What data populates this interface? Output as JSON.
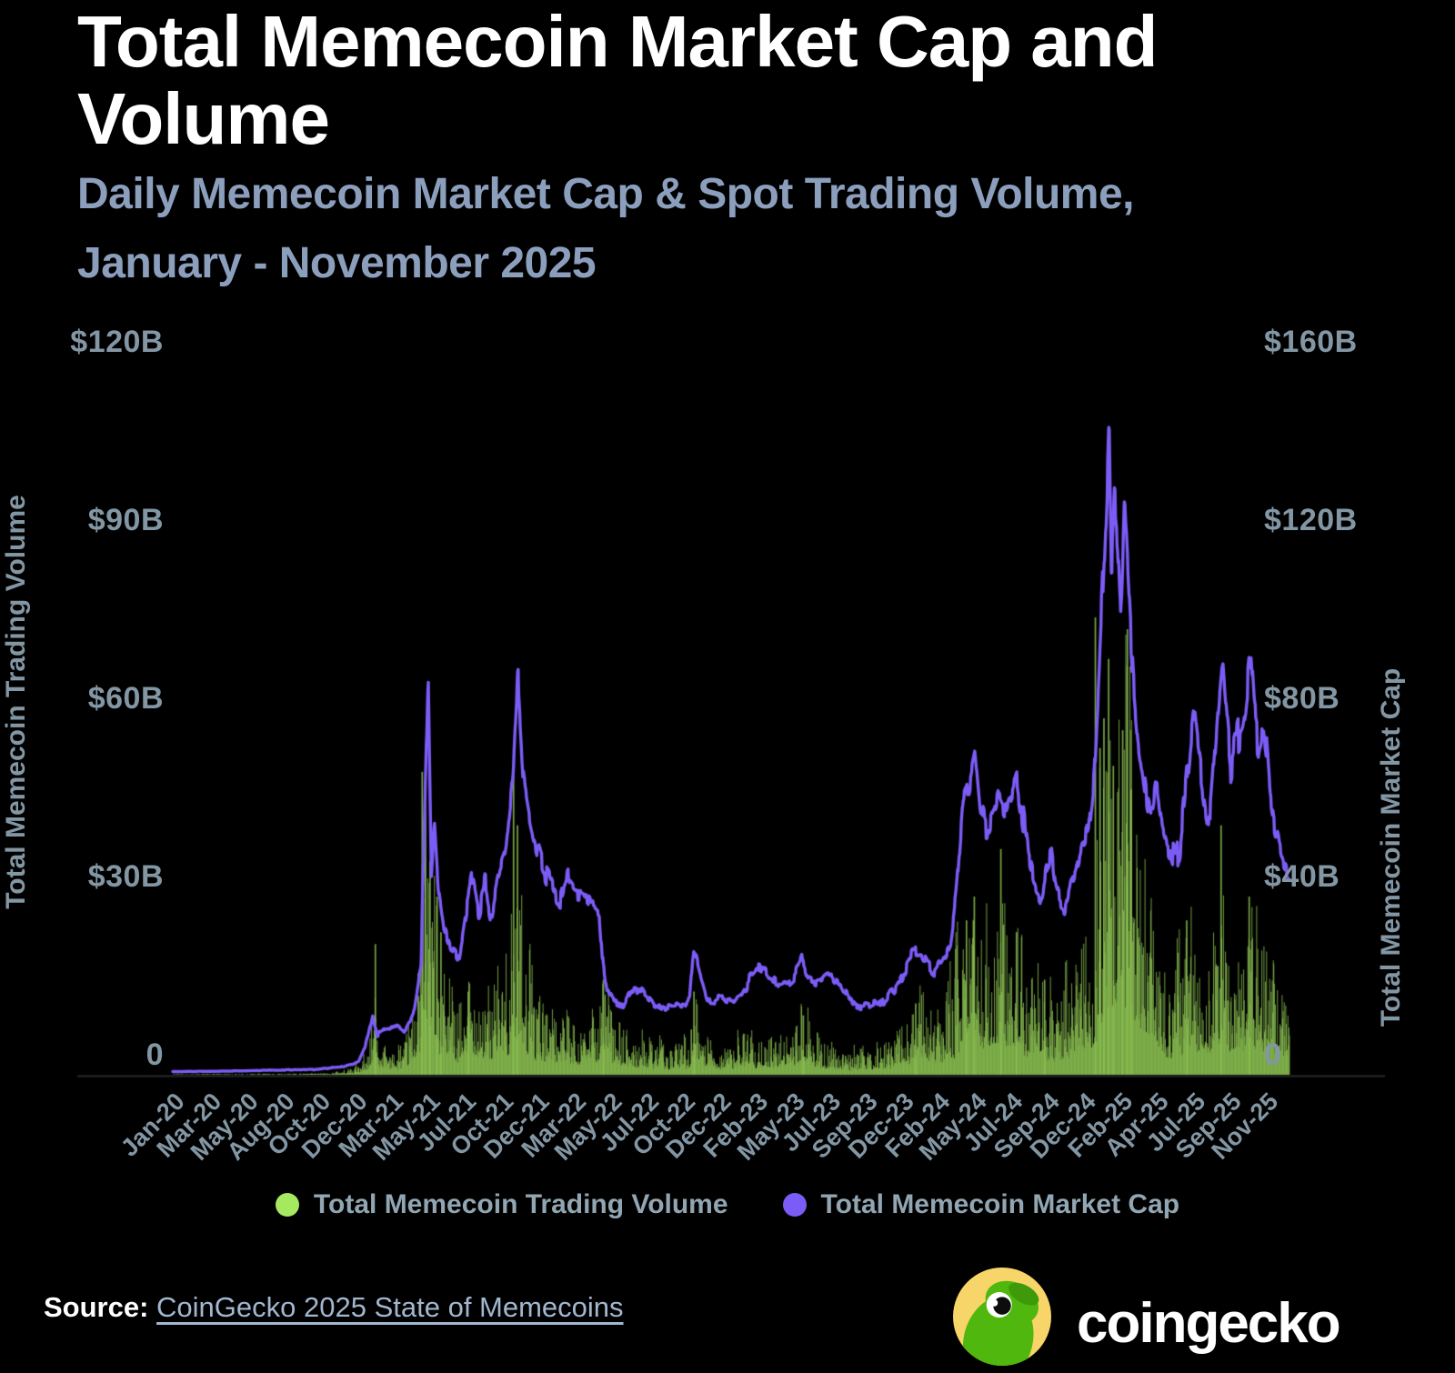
{
  "header": {
    "title": "Total Memecoin Market Cap and Volume",
    "subtitle_line1": "Daily Memecoin Market Cap & Spot Trading Volume,",
    "subtitle_line2": "January - November 2025"
  },
  "chart_data": {
    "type": "bar",
    "note": "dual-axis daily chart: green volume bars on left axis, purple market-cap line on right axis",
    "x_unit": "months since Jan-2020",
    "x_range": [
      0,
      71.5
    ],
    "grid": false,
    "legend_position": "bottom",
    "x_ticks": [
      "Jan-20",
      "Mar-20",
      "May-20",
      "Aug-20",
      "Oct-20",
      "Dec-20",
      "Mar-21",
      "May-21",
      "Jul-21",
      "Oct-21",
      "Dec-21",
      "Mar-22",
      "May-22",
      "Jul-22",
      "Oct-22",
      "Dec-22",
      "Feb-23",
      "May-23",
      "Jul-23",
      "Sep-23",
      "Dec-23",
      "Feb-24",
      "May-24",
      "Jul-24",
      "Sep-24",
      "Dec-24",
      "Feb-25",
      "Apr-25",
      "Jul-25",
      "Sep-25",
      "Nov-25"
    ],
    "left_axis": {
      "title": "Total Memecoin Trading Volume",
      "max": 120,
      "ticks": [
        {
          "label": "$120B",
          "value": 120
        },
        {
          "label": "$90B",
          "value": 90
        },
        {
          "label": "$60B",
          "value": 60
        },
        {
          "label": "$30B",
          "value": 30
        },
        {
          "label": "0",
          "value": 0
        }
      ]
    },
    "right_axis": {
      "title": "Total Memecoin Market Cap",
      "max": 160,
      "ticks": [
        {
          "label": "$160B",
          "value": 160
        },
        {
          "label": "$120B",
          "value": 120
        },
        {
          "label": "$80B",
          "value": 80
        },
        {
          "label": "$40B",
          "value": 40
        },
        {
          "label": "0",
          "value": 0
        }
      ]
    },
    "series": [
      {
        "name": "Total Memecoin Trading Volume",
        "render": "bar",
        "axis": "left",
        "unit": "USD billions per day",
        "color": "#8CC152",
        "legend_color": "#A6E860",
        "anchors": [
          [
            0,
            0.05
          ],
          [
            6,
            0.07
          ],
          [
            10,
            0.12
          ],
          [
            11.5,
            0.5
          ],
          [
            12.4,
            1.5
          ],
          [
            12.9,
            6
          ],
          [
            13.3,
            2.5
          ],
          [
            14,
            2
          ],
          [
            15,
            2.5
          ],
          [
            15.8,
            8
          ],
          [
            16.2,
            20
          ],
          [
            16.5,
            15
          ],
          [
            17,
            11
          ],
          [
            17.5,
            7
          ],
          [
            18.2,
            3.5
          ],
          [
            18.8,
            6
          ],
          [
            19.3,
            8
          ],
          [
            20,
            5
          ],
          [
            20.7,
            7
          ],
          [
            21.4,
            9
          ],
          [
            21.9,
            16
          ],
          [
            22.3,
            13
          ],
          [
            22.8,
            9
          ],
          [
            23.3,
            7
          ],
          [
            24,
            5.5
          ],
          [
            25,
            4.5
          ],
          [
            26,
            4
          ],
          [
            27,
            4.5
          ],
          [
            27.6,
            8
          ],
          [
            28.2,
            3.5
          ],
          [
            29,
            3
          ],
          [
            30,
            2.8
          ],
          [
            31,
            2.2
          ],
          [
            32,
            2.2
          ],
          [
            33,
            3
          ],
          [
            33.35,
            7
          ],
          [
            34,
            3.5
          ],
          [
            35,
            2.2
          ],
          [
            36,
            2.5
          ],
          [
            37,
            3.5
          ],
          [
            38,
            3
          ],
          [
            39,
            2.6
          ],
          [
            40,
            4
          ],
          [
            40.4,
            5
          ],
          [
            41,
            3
          ],
          [
            42,
            2.6
          ],
          [
            43,
            2.2
          ],
          [
            44,
            1.8
          ],
          [
            45,
            2.2
          ],
          [
            46,
            2.8
          ],
          [
            47,
            4.5
          ],
          [
            47.6,
            6
          ],
          [
            48.4,
            4.5
          ],
          [
            49.3,
            5.5
          ],
          [
            50.2,
            9
          ],
          [
            50.7,
            14
          ],
          [
            51.2,
            16
          ],
          [
            51.8,
            12
          ],
          [
            52.5,
            11
          ],
          [
            53.3,
            12
          ],
          [
            54,
            11
          ],
          [
            54.6,
            8
          ],
          [
            55.3,
            7
          ],
          [
            56,
            6
          ],
          [
            56.7,
            6
          ],
          [
            57.4,
            7
          ],
          [
            58,
            9
          ],
          [
            58.6,
            11
          ],
          [
            59.1,
            16
          ],
          [
            59.6,
            26
          ],
          [
            59.95,
            38
          ],
          [
            60.3,
            24
          ],
          [
            60.7,
            28
          ],
          [
            61.05,
            32
          ],
          [
            61.4,
            20
          ],
          [
            61.8,
            16
          ],
          [
            62.3,
            13
          ],
          [
            62.8,
            11
          ],
          [
            63.4,
            9
          ],
          [
            64,
            8
          ],
          [
            64.6,
            10
          ],
          [
            65.2,
            13
          ],
          [
            65.6,
            11
          ],
          [
            66.2,
            9
          ],
          [
            66.8,
            11
          ],
          [
            67.2,
            14
          ],
          [
            67.7,
            10
          ],
          [
            68.2,
            11
          ],
          [
            68.8,
            13
          ],
          [
            69.3,
            12
          ],
          [
            69.8,
            10
          ],
          [
            70.3,
            8
          ],
          [
            70.8,
            7
          ],
          [
            71.5,
            6
          ]
        ],
        "spikes": [
          [
            12.95,
            22
          ],
          [
            15.95,
            51
          ],
          [
            16.15,
            44
          ],
          [
            16.45,
            36
          ],
          [
            16.9,
            30
          ],
          [
            17.15,
            24
          ],
          [
            18.9,
            14
          ],
          [
            21.8,
            52
          ],
          [
            22.05,
            42
          ],
          [
            27.55,
            16
          ],
          [
            33.35,
            14
          ],
          [
            40.35,
            10
          ],
          [
            47.55,
            12
          ],
          [
            50.8,
            26
          ],
          [
            51.3,
            30
          ],
          [
            53,
            38
          ],
          [
            54,
            24
          ],
          [
            55.8,
            16
          ],
          [
            59.05,
            77
          ],
          [
            59.35,
            55
          ],
          [
            59.6,
            60
          ],
          [
            59.9,
            70
          ],
          [
            60.2,
            52
          ],
          [
            60.8,
            58
          ],
          [
            61.1,
            75
          ],
          [
            61.35,
            48
          ],
          [
            64.9,
            26
          ],
          [
            67.1,
            42
          ],
          [
            68.9,
            30
          ]
        ]
      },
      {
        "name": "Total Memecoin Market Cap",
        "render": "line",
        "axis": "right",
        "unit": "USD billions",
        "color": "#7C5CF6",
        "legend_color": "#7C5CF6",
        "anchors": [
          [
            0,
            0.7
          ],
          [
            3,
            0.8
          ],
          [
            6,
            1
          ],
          [
            9,
            1.2
          ],
          [
            11,
            1.8
          ],
          [
            11.9,
            3
          ],
          [
            12.3,
            6
          ],
          [
            12.8,
            13
          ],
          [
            13.1,
            9
          ],
          [
            13.7,
            10
          ],
          [
            14.3,
            11
          ],
          [
            14.9,
            10
          ],
          [
            15.4,
            13
          ],
          [
            15.9,
            24
          ],
          [
            16.15,
            60
          ],
          [
            16.35,
            88
          ],
          [
            16.55,
            44
          ],
          [
            16.75,
            57
          ],
          [
            17,
            42
          ],
          [
            17.35,
            33
          ],
          [
            17.8,
            29
          ],
          [
            18.3,
            26
          ],
          [
            18.8,
            37
          ],
          [
            19.2,
            44
          ],
          [
            19.6,
            37
          ],
          [
            20,
            43
          ],
          [
            20.4,
            36
          ],
          [
            20.8,
            43
          ],
          [
            21.3,
            48
          ],
          [
            21.8,
            66
          ],
          [
            22.1,
            88
          ],
          [
            22.45,
            66
          ],
          [
            22.9,
            57
          ],
          [
            23.3,
            51
          ],
          [
            23.8,
            46
          ],
          [
            24.3,
            42
          ],
          [
            24.8,
            38
          ],
          [
            25.3,
            44
          ],
          [
            25.8,
            41
          ],
          [
            26.3,
            41
          ],
          [
            26.8,
            39
          ],
          [
            27.3,
            38
          ],
          [
            27.55,
            24
          ],
          [
            27.8,
            18
          ],
          [
            28.3,
            16
          ],
          [
            28.8,
            15
          ],
          [
            29.3,
            18
          ],
          [
            29.8,
            19
          ],
          [
            30.3,
            18
          ],
          [
            30.8,
            16
          ],
          [
            31.3,
            15
          ],
          [
            31.8,
            15.5
          ],
          [
            32.3,
            16
          ],
          [
            32.8,
            15.5
          ],
          [
            33.1,
            17
          ],
          [
            33.35,
            28
          ],
          [
            33.65,
            24
          ],
          [
            33.9,
            21
          ],
          [
            34.2,
            17
          ],
          [
            34.7,
            16.5
          ],
          [
            35.3,
            17
          ],
          [
            35.9,
            16.5
          ],
          [
            36.4,
            18
          ],
          [
            36.9,
            21
          ],
          [
            37.4,
            24
          ],
          [
            37.9,
            23
          ],
          [
            38.4,
            21
          ],
          [
            38.9,
            20
          ],
          [
            39.4,
            21
          ],
          [
            39.9,
            23
          ],
          [
            40.3,
            26
          ],
          [
            40.7,
            22
          ],
          [
            41.2,
            21
          ],
          [
            41.7,
            22
          ],
          [
            42.2,
            22
          ],
          [
            42.7,
            20
          ],
          [
            43.2,
            18
          ],
          [
            43.7,
            16
          ],
          [
            44.2,
            15.5
          ],
          [
            44.7,
            16
          ],
          [
            45.2,
            16
          ],
          [
            45.7,
            17
          ],
          [
            46.2,
            19
          ],
          [
            46.7,
            22
          ],
          [
            47.2,
            26
          ],
          [
            47.6,
            28
          ],
          [
            48,
            27
          ],
          [
            48.4,
            24
          ],
          [
            48.8,
            23
          ],
          [
            49.3,
            26
          ],
          [
            49.8,
            30
          ],
          [
            50.2,
            42
          ],
          [
            50.6,
            62
          ],
          [
            51,
            66
          ],
          [
            51.35,
            72
          ],
          [
            51.7,
            58
          ],
          [
            52.1,
            54
          ],
          [
            52.5,
            58
          ],
          [
            52.9,
            63
          ],
          [
            53.3,
            60
          ],
          [
            53.7,
            64
          ],
          [
            54.05,
            67
          ],
          [
            54.4,
            58
          ],
          [
            54.8,
            48
          ],
          [
            55.2,
            43
          ],
          [
            55.6,
            40
          ],
          [
            55.9,
            46
          ],
          [
            56.2,
            50
          ],
          [
            56.5,
            41
          ],
          [
            56.8,
            38
          ],
          [
            57.1,
            37
          ],
          [
            57.5,
            43
          ],
          [
            57.9,
            47
          ],
          [
            58.3,
            52
          ],
          [
            58.7,
            56
          ],
          [
            59,
            67
          ],
          [
            59.3,
            88
          ],
          [
            59.55,
            108
          ],
          [
            59.8,
            132
          ],
          [
            59.95,
            148
          ],
          [
            60.1,
            112
          ],
          [
            60.3,
            125
          ],
          [
            60.5,
            118
          ],
          [
            60.7,
            100
          ],
          [
            60.95,
            126
          ],
          [
            61.2,
            108
          ],
          [
            61.5,
            88
          ],
          [
            61.8,
            76
          ],
          [
            62.1,
            68
          ],
          [
            62.4,
            60
          ],
          [
            62.7,
            57
          ],
          [
            63,
            63
          ],
          [
            63.3,
            56
          ],
          [
            63.6,
            52
          ],
          [
            63.9,
            50
          ],
          [
            64.2,
            47
          ],
          [
            64.5,
            52
          ],
          [
            64.8,
            62
          ],
          [
            65.1,
            74
          ],
          [
            65.35,
            83
          ],
          [
            65.6,
            75
          ],
          [
            65.9,
            68
          ],
          [
            66.2,
            60
          ],
          [
            66.45,
            58
          ],
          [
            66.7,
            70
          ],
          [
            66.95,
            82
          ],
          [
            67.2,
            92
          ],
          [
            67.45,
            80
          ],
          [
            67.7,
            70
          ],
          [
            67.95,
            74
          ],
          [
            68.2,
            77
          ],
          [
            68.5,
            80
          ],
          [
            68.75,
            86
          ],
          [
            69,
            94
          ],
          [
            69.25,
            80
          ],
          [
            69.5,
            76
          ],
          [
            69.75,
            81
          ],
          [
            70,
            74
          ],
          [
            70.25,
            62
          ],
          [
            70.5,
            56
          ],
          [
            70.8,
            52
          ],
          [
            71.1,
            48
          ],
          [
            71.5,
            45
          ]
        ],
        "key_values": {
          "may_2021_peak_B": 88,
          "nov_2021_peak_B": 88,
          "mid_2022_low_B": 15,
          "dec_2024_peak_B": 148,
          "apr_2025_low_B": 47,
          "sep_2025_peak_B": 94,
          "nov_2025_end_B": 45
        }
      }
    ]
  },
  "footer": {
    "source_label": "Source:",
    "source_link_text": "CoinGecko 2025 State of Memecoins",
    "logo_text": "coingecko"
  }
}
